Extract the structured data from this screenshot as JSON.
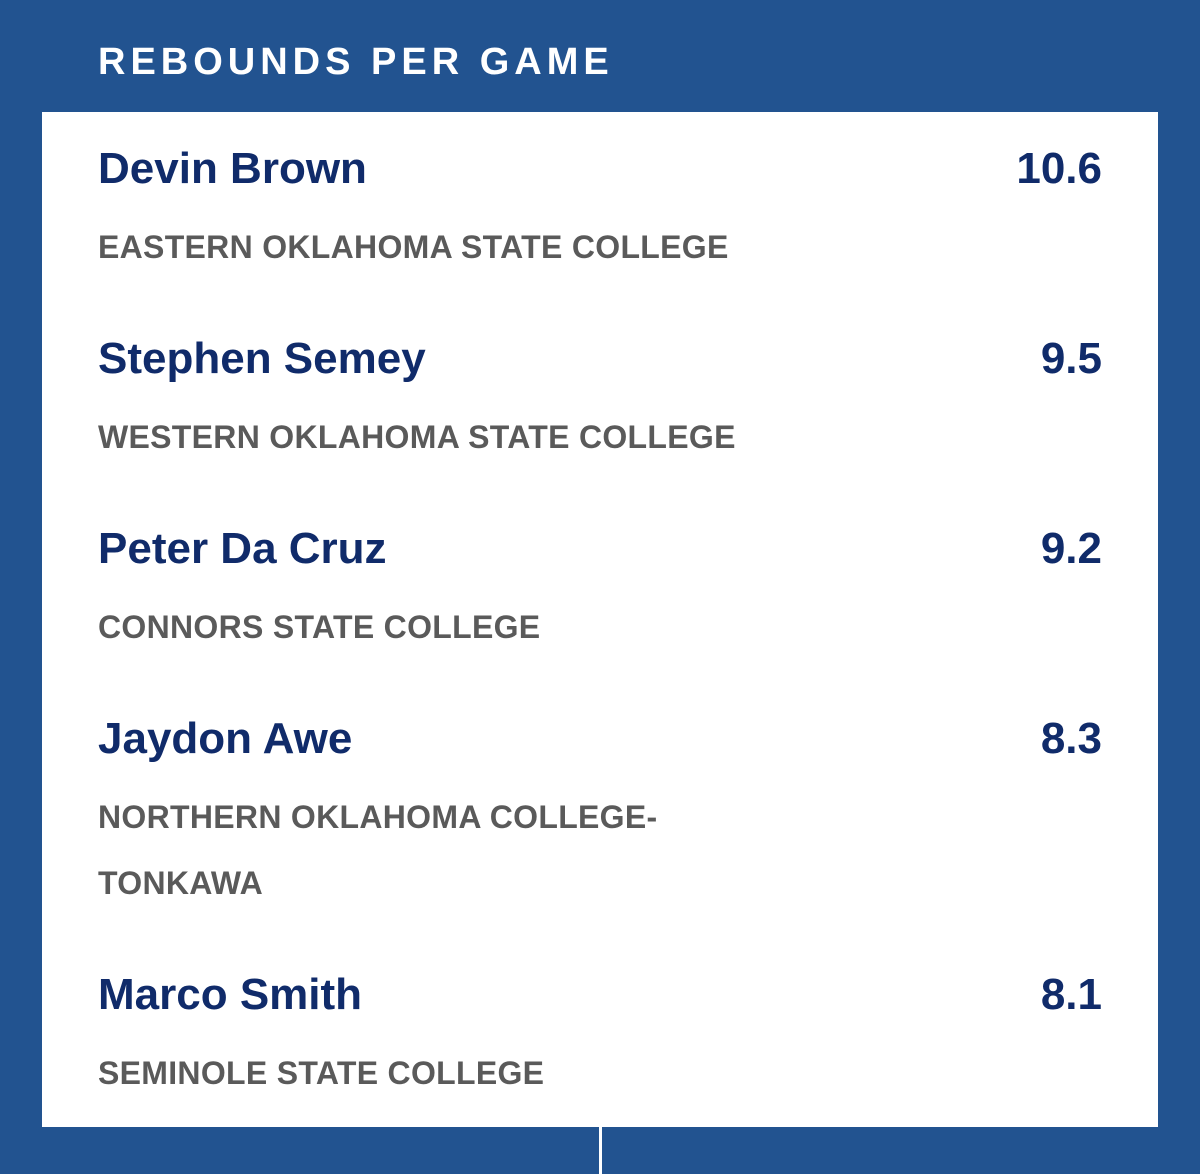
{
  "title": "REBOUNDS PER GAME",
  "players": [
    {
      "name": "Devin Brown",
      "school": "EASTERN OKLAHOMA STATE COLLEGE",
      "value": "10.6"
    },
    {
      "name": "Stephen Semey",
      "school": "WESTERN OKLAHOMA STATE COLLEGE",
      "value": "9.5"
    },
    {
      "name": "Peter Da Cruz",
      "school": "CONNORS STATE COLLEGE",
      "value": "9.2"
    },
    {
      "name": "Jaydon Awe",
      "school": "NORTHERN OKLAHOMA COLLEGE-TONKAWA",
      "value": "8.3"
    },
    {
      "name": "Marco Smith",
      "school": "SEMINOLE STATE COLLEGE",
      "value": "8.1"
    }
  ],
  "colors": {
    "background": "#225390",
    "card": "#ffffff",
    "name_text": "#102b6a",
    "school_text": "#5a5a5a",
    "header_text": "#ffffff"
  }
}
